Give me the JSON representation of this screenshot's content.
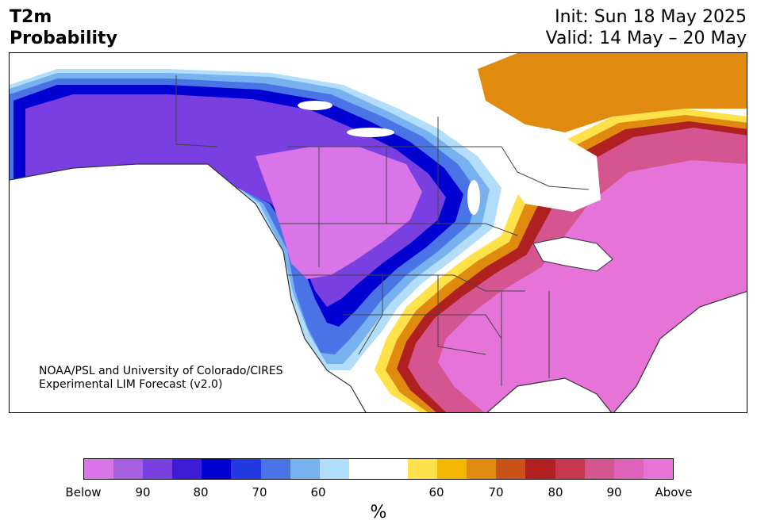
{
  "header": {
    "variable": "T2m",
    "product": "Probability",
    "init": "Init: Sun 18 May 2025",
    "valid": "Valid: 14 May – 20 May"
  },
  "credit": {
    "line1": "NOAA/PSL and University of Colorado/CIRES",
    "line2": "Experimental LIM Forecast (v2.0)"
  },
  "colorbar": {
    "colors": [
      "#d975e8",
      "#a85ee0",
      "#7a3fe0",
      "#3e1bd6",
      "#0000d2",
      "#2338e0",
      "#4a73e6",
      "#77b1f0",
      "#b3defb",
      "#ffffff",
      "#ffffff",
      "#ffe24a",
      "#f2b800",
      "#e08a10",
      "#c85218",
      "#b02020",
      "#c63850",
      "#d55590",
      "#e062b8",
      "#e573d8"
    ],
    "labels": [
      "Below",
      "90",
      "80",
      "70",
      "60",
      "60",
      "70",
      "80",
      "90",
      "Above"
    ],
    "units": "%"
  },
  "map_regions": {
    "cold_west": "Below-normal temperature probabilities over Alaska, western Canada and the western US",
    "warm_east": "Above-normal temperature probabilities over the central/eastern US and eastern Canada"
  }
}
